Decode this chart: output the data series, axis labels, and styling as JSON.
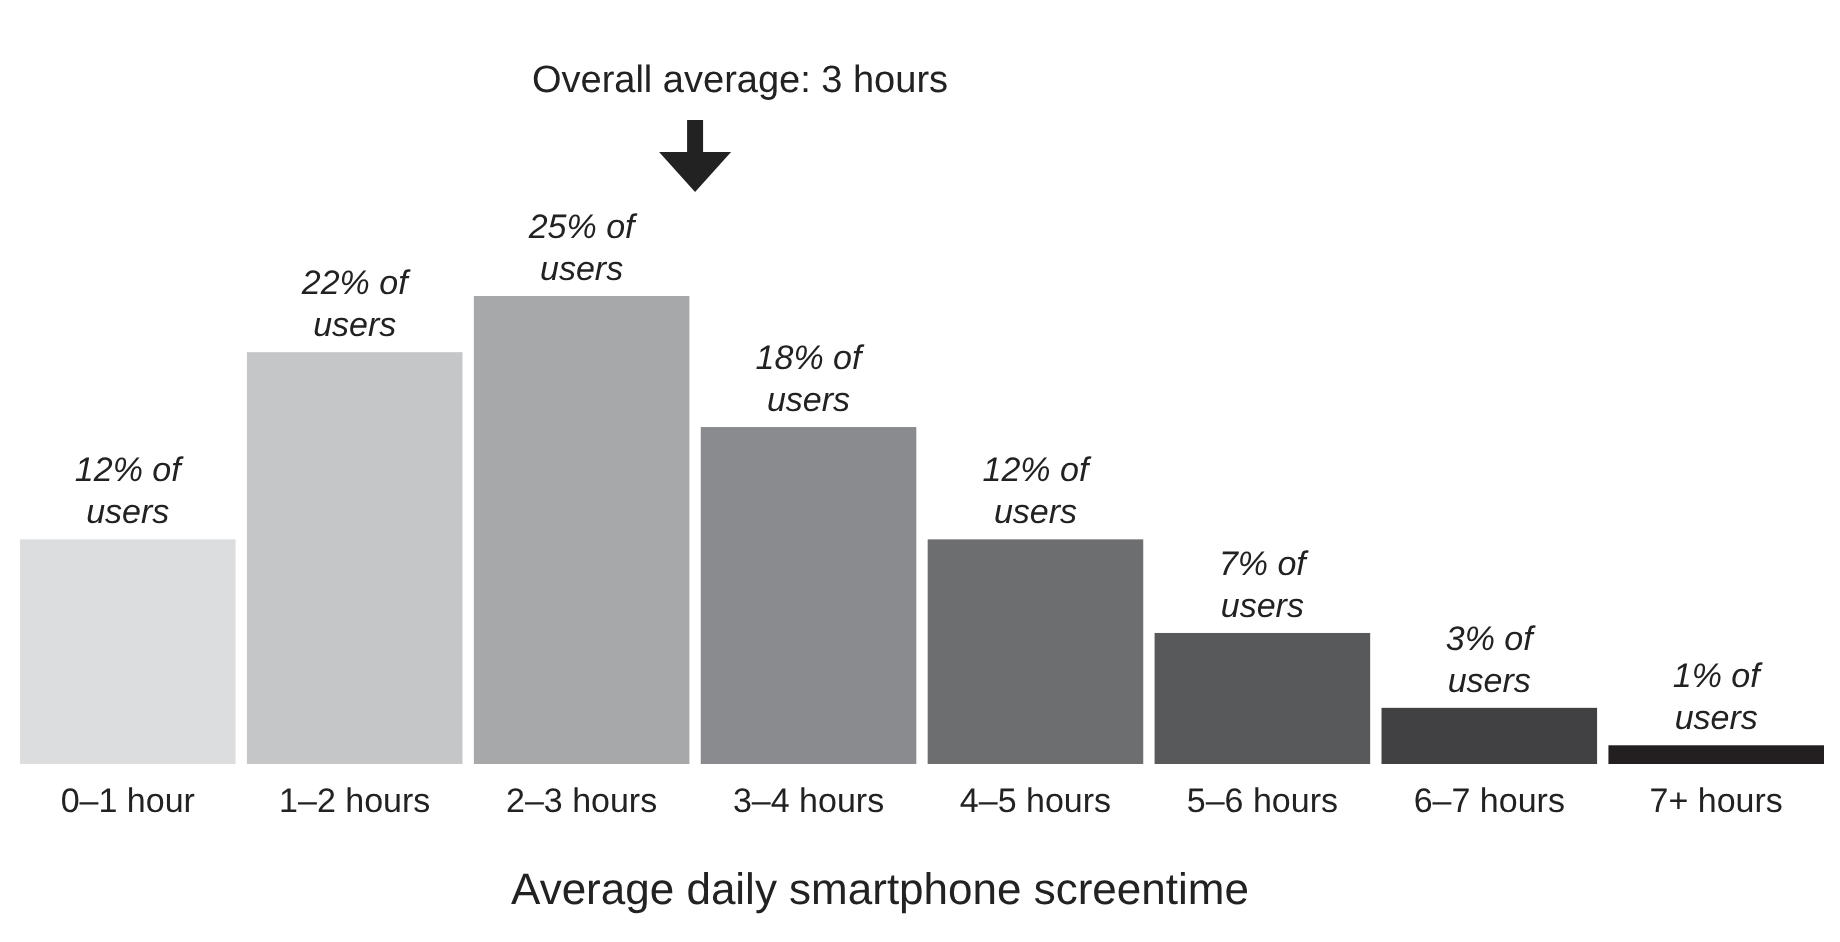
{
  "chart_data": {
    "type": "bar",
    "title": "Overall average: 3 hours",
    "xlabel": "Average daily smartphone screentime",
    "relative": false,
    "categories": [
      "0–1 hour",
      "1–2 hours",
      "2–3 hours",
      "3–4 hours",
      "4–5 hours",
      "5–6 hours",
      "6–7 hours",
      "7+ hours"
    ],
    "values": [
      12,
      22,
      25,
      18,
      12,
      7,
      3,
      1
    ],
    "colors": [
      "#dcddde",
      "#c5c6c7",
      "#a7a8aa",
      "#8a8b8e",
      "#6d6e70",
      "#58595b",
      "#414042",
      "#231f20"
    ],
    "value_labels": [
      "12% of users",
      "22% of users",
      "25% of users",
      "18% of users",
      "12% of users",
      "7% of users",
      "3% of users",
      "1% of users"
    ]
  }
}
